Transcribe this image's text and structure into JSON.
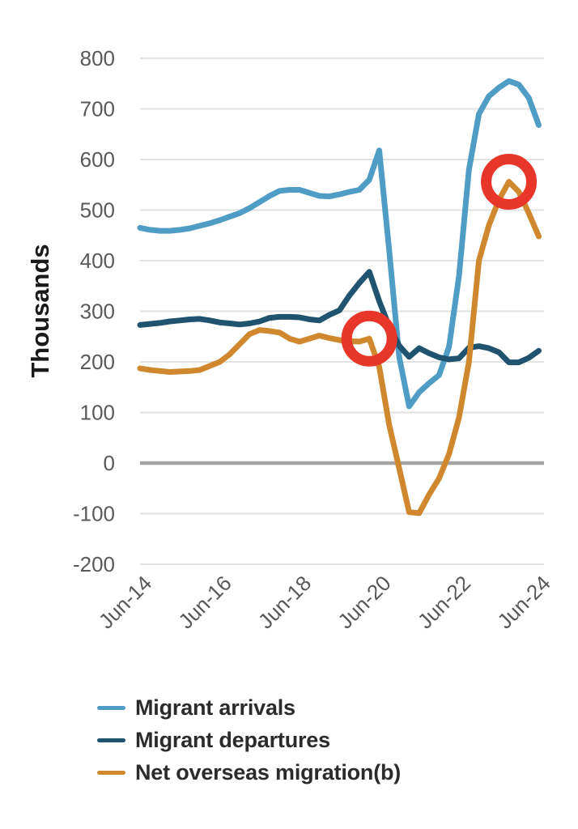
{
  "page": {
    "background": "#ffffff"
  },
  "chart_data": {
    "type": "line",
    "title": "",
    "ylabel": "Thousands",
    "xlabel": "",
    "units": "thousands, year ending quarterly",
    "ylim": [
      -200,
      800
    ],
    "grid": "horizontal",
    "zero_line_emphasized": true,
    "y_ticks": [
      800,
      700,
      600,
      500,
      400,
      300,
      200,
      100,
      0,
      -100,
      -200
    ],
    "categories": [
      "Jun-14",
      "Sep-14",
      "Dec-14",
      "Mar-15",
      "Jun-15",
      "Sep-15",
      "Dec-15",
      "Mar-16",
      "Jun-16",
      "Sep-16",
      "Dec-16",
      "Mar-17",
      "Jun-17",
      "Sep-17",
      "Dec-17",
      "Mar-18",
      "Jun-18",
      "Sep-18",
      "Dec-18",
      "Mar-19",
      "Jun-19",
      "Sep-19",
      "Dec-19",
      "Mar-20",
      "Jun-20",
      "Sep-20",
      "Dec-20",
      "Mar-21",
      "Jun-21",
      "Sep-21",
      "Dec-21",
      "Mar-22",
      "Jun-22",
      "Sep-22",
      "Dec-22",
      "Mar-23",
      "Jun-23",
      "Sep-23",
      "Dec-23",
      "Mar-24",
      "Jun-24"
    ],
    "x_tick_labels": [
      "Jun-14",
      "Jun-16",
      "Jun-18",
      "Jun-20",
      "Jun-22",
      "Jun-24"
    ],
    "x_tick_indices": [
      0,
      8,
      16,
      24,
      32,
      40
    ],
    "series": [
      {
        "name": "Migrant arrivals",
        "color": "#4f9cc5",
        "values": [
          465,
          461,
          459,
          459,
          461,
          464,
          469,
          474,
          480,
          487,
          494,
          504,
          516,
          528,
          538,
          540,
          540,
          534,
          528,
          527,
          531,
          536,
          540,
          560,
          618,
          420,
          210,
          112,
          140,
          158,
          174,
          230,
          370,
          580,
          690,
          725,
          742,
          755,
          748,
          722,
          668
        ]
      },
      {
        "name": "Migrant departures",
        "color": "#1f536f",
        "values": [
          273,
          275,
          277,
          280,
          282,
          284,
          285,
          282,
          278,
          276,
          274,
          276,
          280,
          287,
          289,
          289,
          288,
          284,
          282,
          293,
          302,
          331,
          356,
          378,
          320,
          270,
          232,
          210,
          227,
          217,
          209,
          205,
          207,
          228,
          231,
          227,
          219,
          199,
          199,
          208,
          222
        ]
      },
      {
        "name": "Net overseas migration(b)",
        "color": "#d0882f",
        "values": [
          187,
          184,
          182,
          180,
          181,
          182,
          184,
          192,
          200,
          215,
          235,
          255,
          263,
          261,
          258,
          246,
          240,
          246,
          252,
          247,
          243,
          241,
          240,
          246,
          190,
          75,
          -10,
          -97,
          -99,
          -62,
          -30,
          18,
          90,
          200,
          400,
          470,
          520,
          556,
          536,
          494,
          448
        ]
      }
    ],
    "annotations": [
      {
        "type": "circle",
        "series": "Net overseas migration(b)",
        "category": "Mar-20",
        "index": 23,
        "value": 246,
        "color": "#e8362b"
      },
      {
        "type": "circle",
        "series": "Net overseas migration(b)",
        "category": "Sep-23",
        "index": 37,
        "value": 556,
        "color": "#e8362b"
      }
    ],
    "legend_position": "bottom-left",
    "legend_entries": [
      "Migrant arrivals",
      "Migrant departures",
      "Net overseas migration(b)"
    ]
  },
  "style_colors": {
    "gridline": "#e2e2e2",
    "zero_line": "#a3a3a3",
    "axis_tick_text": "#595959",
    "legend_text": "#2b2b2b",
    "y_axis_title_text": "#1a1a1a"
  }
}
